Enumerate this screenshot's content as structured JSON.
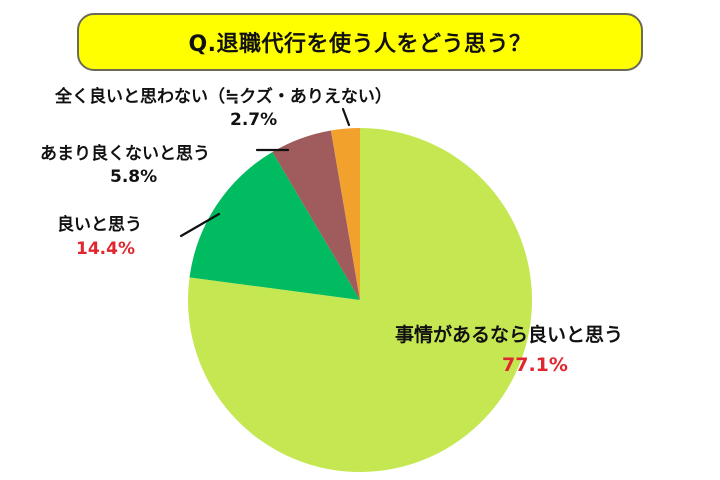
{
  "title": "Q.退職代行を使う人をどう思う？",
  "colors": {
    "title_bg": "#ffff00",
    "title_border": "#6b6b55",
    "highlight_text": "#e0262e"
  },
  "slices": [
    {
      "label": "事情があるなら良いと思う",
      "percent_label": "77.1%",
      "value": 77.1,
      "color": "#c5e752",
      "percent_highlight": true
    },
    {
      "label": "良いと思う",
      "percent_label": "14.4%",
      "value": 14.4,
      "color": "#00bb5f",
      "percent_highlight": true
    },
    {
      "label": "あまり良くないと思う",
      "percent_label": "5.8%",
      "value": 5.8,
      "color": "#a05c5c",
      "percent_highlight": false
    },
    {
      "label": "全く良いと思わない（≒クズ・ありえない）",
      "percent_label": "2.7%",
      "value": 2.7,
      "color": "#f2a22c",
      "percent_highlight": false
    }
  ],
  "chart_data": {
    "type": "pie",
    "title": "Q.退職代行を使う人をどう思う？",
    "categories": [
      "事情があるなら良いと思う",
      "良いと思う",
      "あまり良くないと思う",
      "全く良いと思わない（≒クズ・ありえない）"
    ],
    "values": [
      77.1,
      14.4,
      5.8,
      2.7
    ],
    "unit": "%",
    "colors": [
      "#c5e752",
      "#00bb5f",
      "#a05c5c",
      "#f2a22c"
    ],
    "start_angle": "12 o'clock",
    "direction": "clockwise",
    "legend": "none (direct labels with leader lines)",
    "grid": false
  }
}
